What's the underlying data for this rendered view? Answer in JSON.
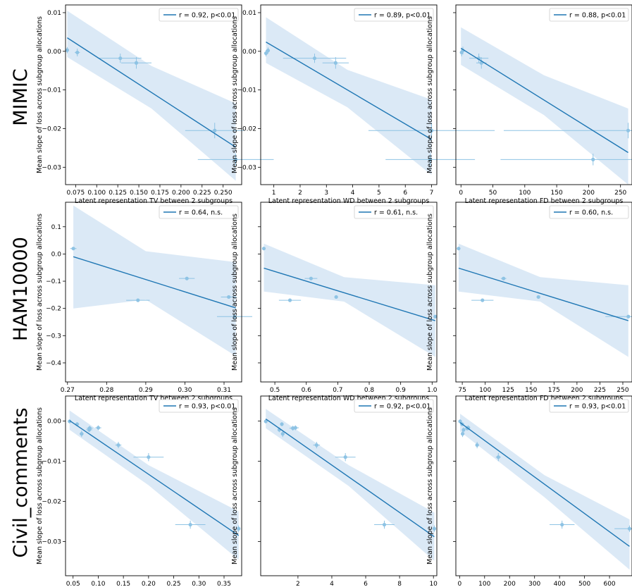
{
  "figure": {
    "row_labels": [
      "MIMIC",
      "HAM10000",
      "Civil_comments"
    ],
    "y_label": "Mean slope of loss across subgroup allocations",
    "colors": {
      "line": "#1f77b4",
      "band": "#cfe2f3",
      "points": "#8ec3e4"
    }
  },
  "chart_data": [
    {
      "id": "mimic-tv",
      "type": "scatter",
      "row": 0,
      "col": 0,
      "title": "",
      "xlabel": "Latent representation TV between 2 subgroups",
      "ylabel": "Mean slope of loss across subgroup allocations",
      "legend": "r = 0.92, p<0.01",
      "legend_loc": "top-right",
      "xlim": [
        0.063,
        0.272
      ],
      "ylim": [
        -0.0345,
        0.012
      ],
      "xticks": [
        0.075,
        0.1,
        0.125,
        0.15,
        0.175,
        0.2,
        0.225,
        0.25
      ],
      "xtick_labels": [
        "0.075",
        "0.100",
        "0.125",
        "0.150",
        "0.175",
        "0.200",
        "0.225",
        "0.250"
      ],
      "yticks": [
        0.01,
        0.0,
        -0.01,
        -0.02,
        -0.03
      ],
      "ytick_labels": [
        "0.01",
        "0.00",
        "−0.01",
        "−0.02",
        "−0.03"
      ],
      "points": [
        {
          "x": 0.065,
          "y": 0.0003,
          "xerr": 0.001,
          "yerr": 0.0008
        },
        {
          "x": 0.077,
          "y": -0.0003,
          "xerr": 0.003,
          "yerr": 0.001
        },
        {
          "x": 0.128,
          "y": -0.0018,
          "xerr": 0.025,
          "yerr": 0.0012
        },
        {
          "x": 0.147,
          "y": -0.003,
          "xerr": 0.018,
          "yerr": 0.0015
        },
        {
          "x": 0.24,
          "y": -0.0205,
          "xerr": 0.035,
          "yerr": 0.002
        },
        {
          "x": 0.265,
          "y": -0.028,
          "xerr": 0.045,
          "yerr": 0.0015
        }
      ],
      "fit": [
        [
          0.065,
          0.0035
        ],
        [
          0.265,
          -0.0248
        ]
      ],
      "band_upper": [
        [
          0.065,
          0.0105
        ],
        [
          0.165,
          -0.0038
        ],
        [
          0.265,
          -0.0135
        ]
      ],
      "band_lower": [
        [
          0.065,
          -0.0015
        ],
        [
          0.165,
          -0.0148
        ],
        [
          0.265,
          -0.0335
        ]
      ]
    },
    {
      "id": "mimic-wd",
      "type": "scatter",
      "row": 0,
      "col": 1,
      "title": "",
      "xlabel": "Latent representation WD between 2 subgroups",
      "ylabel": "Mean slope of loss across subgroup allocations",
      "legend": "r = 0.89, p<0.01",
      "legend_loc": "top-right",
      "xlim": [
        0.5,
        7.2
      ],
      "ylim": [
        -0.0345,
        0.012
      ],
      "xticks": [
        1,
        2,
        3,
        4,
        5,
        6,
        7
      ],
      "xtick_labels": [
        "1",
        "2",
        "3",
        "4",
        "5",
        "6",
        "7"
      ],
      "yticks": [
        0.01,
        0.0,
        -0.01,
        -0.02,
        -0.03
      ],
      "ytick_labels": [
        "0.01",
        "0.00",
        "−0.01",
        "−0.02",
        "−0.03"
      ],
      "points": [
        {
          "x": 0.7,
          "y": -0.0005,
          "xerr": 0.05,
          "yerr": 0.0008
        },
        {
          "x": 0.78,
          "y": 0.0002,
          "xerr": 0.05,
          "yerr": 0.0008
        },
        {
          "x": 2.55,
          "y": -0.0018,
          "xerr": 1.2,
          "yerr": 0.0012
        },
        {
          "x": 3.35,
          "y": -0.003,
          "xerr": 0.5,
          "yerr": 0.0015
        },
        {
          "x": 7.0,
          "y": -0.0205,
          "xerr": 2.4,
          "yerr": 0.002
        },
        {
          "x": 6.95,
          "y": -0.028,
          "xerr": 1.7,
          "yerr": 0.0015
        }
      ],
      "fit": [
        [
          0.7,
          0.0024
        ],
        [
          7.0,
          -0.0228
        ]
      ],
      "band_upper": [
        [
          0.7,
          0.0088
        ],
        [
          3.8,
          -0.0048
        ],
        [
          7.0,
          -0.0125
        ]
      ],
      "band_lower": [
        [
          0.7,
          -0.003
        ],
        [
          3.8,
          -0.0145
        ],
        [
          7.0,
          -0.032
        ]
      ]
    },
    {
      "id": "mimic-fd",
      "type": "scatter",
      "row": 0,
      "col": 2,
      "title": "",
      "xlabel": "Latent representation FD between 2 subgroups",
      "ylabel": "Mean slope of loss across subgroup allocations",
      "legend": "r = 0.88, p<0.01",
      "legend_loc": "top-right",
      "xlim": [
        -8,
        268
      ],
      "ylim": [
        -0.0345,
        0.012
      ],
      "xticks": [
        0,
        50,
        100,
        150,
        200,
        250
      ],
      "xtick_labels": [
        "0",
        "50",
        "100",
        "150",
        "200",
        "250"
      ],
      "yticks": [
        0.01,
        0.0,
        -0.01,
        -0.02,
        -0.03
      ],
      "ytick_labels": [
        "",
        "",
        "",
        "",
        ""
      ],
      "points": [
        {
          "x": 1,
          "y": -0.0003,
          "xerr": 2,
          "yerr": 0.001
        },
        {
          "x": 3,
          "y": 0.0002,
          "xerr": 2,
          "yerr": 0.001
        },
        {
          "x": 28,
          "y": -0.0018,
          "xerr": 15,
          "yerr": 0.0012
        },
        {
          "x": 32,
          "y": -0.003,
          "xerr": 8,
          "yerr": 0.0015
        },
        {
          "x": 262,
          "y": -0.0205,
          "xerr": 195,
          "yerr": 0.002
        },
        {
          "x": 207,
          "y": -0.028,
          "xerr": 145,
          "yerr": 0.0015
        }
      ],
      "fit": [
        [
          0,
          0.0008
        ],
        [
          262,
          -0.0262
        ]
      ],
      "band_upper": [
        [
          0,
          0.0062
        ],
        [
          130,
          -0.0062
        ],
        [
          262,
          -0.0148
        ]
      ],
      "band_lower": [
        [
          0,
          -0.0035
        ],
        [
          130,
          -0.0165
        ],
        [
          262,
          -0.0345
        ]
      ]
    },
    {
      "id": "ham-tv",
      "type": "scatter",
      "row": 1,
      "col": 0,
      "title": "",
      "xlabel": "Latent representation TV between 2 subgroups",
      "ylabel": "Mean slope of loss across subgroup allocations",
      "legend": "r = 0.64, n.s.",
      "legend_loc": "top-right",
      "xlim": [
        0.2695,
        0.3145
      ],
      "ylim": [
        -0.47,
        0.19
      ],
      "xticks": [
        0.27,
        0.28,
        0.29,
        0.3,
        0.31
      ],
      "xtick_labels": [
        "0.27",
        "0.28",
        "0.29",
        "0.30",
        "0.31"
      ],
      "yticks": [
        0.1,
        0.0,
        -0.1,
        -0.2,
        -0.3,
        -0.4
      ],
      "ytick_labels": [
        "0.1",
        "0.0",
        "−0.1",
        "−0.2",
        "−0.3",
        "−0.4"
      ],
      "points": [
        {
          "x": 0.2715,
          "y": 0.02,
          "xerr": 0.0008,
          "yerr": 0.004
        },
        {
          "x": 0.288,
          "y": -0.17,
          "xerr": 0.003,
          "yerr": 0.006
        },
        {
          "x": 0.3005,
          "y": -0.09,
          "xerr": 0.002,
          "yerr": 0.005
        },
        {
          "x": 0.3112,
          "y": -0.158,
          "xerr": 0.002,
          "yerr": 0.006
        },
        {
          "x": 0.3127,
          "y": -0.23,
          "xerr": 0.0045,
          "yerr": 0.006
        }
      ],
      "fit": [
        [
          0.2715,
          -0.01
        ],
        [
          0.313,
          -0.198
        ]
      ],
      "band_upper": [
        [
          0.2715,
          0.178
        ],
        [
          0.29,
          0.01
        ],
        [
          0.313,
          -0.03
        ]
      ],
      "band_lower": [
        [
          0.2715,
          -0.2
        ],
        [
          0.29,
          -0.168
        ],
        [
          0.313,
          -0.375
        ]
      ]
    },
    {
      "id": "ham-wd",
      "type": "scatter",
      "row": 1,
      "col": 1,
      "title": "",
      "xlabel": "Latent representation WD between 2 subgroups",
      "ylabel": "Mean slope of loss across subgroup allocations",
      "legend": "r = 0.61, n.s.",
      "legend_loc": "top-right",
      "xlim": [
        0.455,
        1.015
      ],
      "ylim": [
        -0.47,
        0.19
      ],
      "xticks": [
        0.5,
        0.6,
        0.7,
        0.8,
        0.9,
        1.0
      ],
      "xtick_labels": [
        "0.5",
        "0.6",
        "0.7",
        "0.8",
        "0.9",
        "1.0"
      ],
      "yticks": [
        0.1,
        0.0,
        -0.1,
        -0.2,
        -0.3,
        -0.4
      ],
      "ytick_labels": [
        "",
        "",
        "",
        "",
        "",
        ""
      ],
      "points": [
        {
          "x": 0.465,
          "y": 0.02,
          "xerr": 0.005,
          "yerr": 0.004
        },
        {
          "x": 0.548,
          "y": -0.17,
          "xerr": 0.035,
          "yerr": 0.006
        },
        {
          "x": 0.615,
          "y": -0.09,
          "xerr": 0.02,
          "yerr": 0.005
        },
        {
          "x": 0.695,
          "y": -0.158,
          "xerr": 0.005,
          "yerr": 0.006
        },
        {
          "x": 1.01,
          "y": -0.23,
          "xerr": 0.005,
          "yerr": 0.006
        }
      ],
      "fit": [
        [
          0.465,
          -0.052
        ],
        [
          1.01,
          -0.245
        ]
      ],
      "band_upper": [
        [
          0.465,
          0.038
        ],
        [
          0.72,
          -0.085
        ],
        [
          1.01,
          -0.115
        ]
      ],
      "band_lower": [
        [
          0.465,
          -0.138
        ],
        [
          0.72,
          -0.175
        ],
        [
          1.01,
          -0.378
        ]
      ]
    },
    {
      "id": "ham-fd",
      "type": "scatter",
      "row": 1,
      "col": 2,
      "title": "",
      "xlabel": "Latent representation FD between 2 subgroups",
      "ylabel": "Mean slope of loss across subgroup allocations",
      "legend": "r = 0.60, n.s.",
      "legend_loc": "top-right",
      "xlim": [
        68,
        260
      ],
      "ylim": [
        -0.47,
        0.19
      ],
      "xticks": [
        75,
        100,
        125,
        150,
        175,
        200,
        225,
        250
      ],
      "xtick_labels": [
        "75",
        "100",
        "125",
        "150",
        "175",
        "200",
        "225",
        "250"
      ],
      "yticks": [
        0.1,
        0.0,
        -0.1,
        -0.2,
        -0.3,
        -0.4
      ],
      "ytick_labels": [
        "",
        "",
        "",
        "",
        "",
        ""
      ],
      "points": [
        {
          "x": 71,
          "y": 0.02,
          "xerr": 2,
          "yerr": 0.004
        },
        {
          "x": 97,
          "y": -0.17,
          "xerr": 12,
          "yerr": 0.006
        },
        {
          "x": 120,
          "y": -0.09,
          "xerr": 3,
          "yerr": 0.005
        },
        {
          "x": 158,
          "y": -0.158,
          "xerr": 2,
          "yerr": 0.006
        },
        {
          "x": 256,
          "y": -0.23,
          "xerr": 25,
          "yerr": 0.006
        }
      ],
      "fit": [
        [
          71,
          -0.052
        ],
        [
          256,
          -0.245
        ]
      ],
      "band_upper": [
        [
          71,
          0.038
        ],
        [
          160,
          -0.085
        ],
        [
          256,
          -0.115
        ]
      ],
      "band_lower": [
        [
          71,
          -0.138
        ],
        [
          160,
          -0.175
        ],
        [
          256,
          -0.378
        ]
      ]
    },
    {
      "id": "civil-tv",
      "type": "scatter",
      "row": 2,
      "col": 0,
      "title": "",
      "xlabel": "Latent representation TV between 2 subgroups",
      "ylabel": "Mean slope of loss across subgroup allocations",
      "legend": "r = 0.93, p<0.01",
      "legend_loc": "top-right",
      "xlim": [
        0.035,
        0.385
      ],
      "ylim": [
        -0.0385,
        0.0062
      ],
      "xticks": [
        0.05,
        0.1,
        0.15,
        0.2,
        0.25,
        0.3,
        0.35
      ],
      "xtick_labels": [
        "0.05",
        "0.10",
        "0.15",
        "0.20",
        "0.25",
        "0.30",
        "0.35"
      ],
      "yticks": [
        0.0,
        -0.01,
        -0.02,
        -0.03
      ],
      "ytick_labels": [
        "0.00",
        "−0.01",
        "−0.02",
        "−0.03"
      ],
      "points": [
        {
          "x": 0.043,
          "y": -0.0001,
          "xerr": 0.002,
          "yerr": 0.0005
        },
        {
          "x": 0.058,
          "y": -0.0008,
          "xerr": 0.004,
          "yerr": 0.0005
        },
        {
          "x": 0.067,
          "y": -0.0032,
          "xerr": 0.004,
          "yerr": 0.0008
        },
        {
          "x": 0.082,
          "y": -0.0022,
          "xerr": 0.006,
          "yerr": 0.0006
        },
        {
          "x": 0.083,
          "y": -0.0018,
          "xerr": 0.006,
          "yerr": 0.0006
        },
        {
          "x": 0.1,
          "y": -0.0017,
          "xerr": 0.006,
          "yerr": 0.0006
        },
        {
          "x": 0.14,
          "y": -0.006,
          "xerr": 0.006,
          "yerr": 0.0008
        },
        {
          "x": 0.2,
          "y": -0.009,
          "xerr": 0.03,
          "yerr": 0.001
        },
        {
          "x": 0.283,
          "y": -0.0258,
          "xerr": 0.03,
          "yerr": 0.001
        },
        {
          "x": 0.379,
          "y": -0.0268,
          "xerr": 0.003,
          "yerr": 0.0008
        }
      ],
      "fit": [
        [
          0.043,
          0.0001
        ],
        [
          0.379,
          -0.0285
        ]
      ],
      "band_upper": [
        [
          0.043,
          0.0026
        ],
        [
          0.2,
          -0.011
        ],
        [
          0.379,
          -0.0225
        ]
      ],
      "band_lower": [
        [
          0.043,
          -0.0022
        ],
        [
          0.2,
          -0.016
        ],
        [
          0.379,
          -0.0345
        ]
      ]
    },
    {
      "id": "civil-wd",
      "type": "scatter",
      "row": 2,
      "col": 1,
      "title": "",
      "xlabel": "Latent representation WD between 2 subgroups",
      "ylabel": "Mean slope of loss across subgroup allocations",
      "legend": "r = 0.92, p<0.01",
      "legend_loc": "top-right",
      "xlim": [
        -0.2,
        10.2
      ],
      "ylim": [
        -0.0385,
        0.0062
      ],
      "xticks": [
        2,
        4,
        6,
        8,
        10
      ],
      "xtick_labels": [
        "2",
        "4",
        "6",
        "8",
        "10"
      ],
      "yticks": [
        0.0,
        -0.01,
        -0.02,
        -0.03
      ],
      "ytick_labels": [
        "",
        "",
        "",
        ""
      ],
      "points": [
        {
          "x": 0.1,
          "y": -0.0001,
          "xerr": 0.05,
          "yerr": 0.0005
        },
        {
          "x": 0.9,
          "y": -0.0022,
          "xerr": 0.1,
          "yerr": 0.0006
        },
        {
          "x": 1.05,
          "y": -0.0008,
          "xerr": 0.1,
          "yerr": 0.0005
        },
        {
          "x": 1.1,
          "y": -0.0032,
          "xerr": 0.1,
          "yerr": 0.0008
        },
        {
          "x": 1.7,
          "y": -0.0018,
          "xerr": 0.2,
          "yerr": 0.0006
        },
        {
          "x": 1.85,
          "y": -0.0017,
          "xerr": 0.2,
          "yerr": 0.0006
        },
        {
          "x": 3.1,
          "y": -0.006,
          "xerr": 0.2,
          "yerr": 0.0008
        },
        {
          "x": 4.8,
          "y": -0.009,
          "xerr": 0.6,
          "yerr": 0.001
        },
        {
          "x": 7.1,
          "y": -0.0258,
          "xerr": 0.6,
          "yerr": 0.001
        },
        {
          "x": 10.05,
          "y": -0.0268,
          "xerr": 0.1,
          "yerr": 0.0008
        }
      ],
      "fit": [
        [
          0.1,
          0.0005
        ],
        [
          10.05,
          -0.0288
        ]
      ],
      "band_upper": [
        [
          0.1,
          0.003
        ],
        [
          5.0,
          -0.011
        ],
        [
          10.05,
          -0.0228
        ]
      ],
      "band_lower": [
        [
          0.1,
          -0.0018
        ],
        [
          5.0,
          -0.0162
        ],
        [
          10.05,
          -0.0348
        ]
      ]
    },
    {
      "id": "civil-fd",
      "type": "scatter",
      "row": 2,
      "col": 2,
      "title": "",
      "xlabel": "Latent representation FD between 2 subgroups",
      "ylabel": "Mean slope of loss across subgroup allocations",
      "legend": "r = 0.93, p<0.01",
      "legend_loc": "top-right",
      "xlim": [
        -15,
        690
      ],
      "ylim": [
        -0.0385,
        0.0062
      ],
      "xticks": [
        0,
        100,
        200,
        300,
        400,
        500,
        600
      ],
      "xtick_labels": [
        "0",
        "100",
        "200",
        "300",
        "400",
        "500",
        "600"
      ],
      "yticks": [
        0.0,
        -0.01,
        -0.02,
        -0.03
      ],
      "ytick_labels": [
        "",
        "",
        "",
        ""
      ],
      "points": [
        {
          "x": 2,
          "y": -0.0001,
          "xerr": 2,
          "yerr": 0.0005
        },
        {
          "x": 10,
          "y": -0.0008,
          "xerr": 3,
          "yerr": 0.0005
        },
        {
          "x": 12,
          "y": -0.0032,
          "xerr": 3,
          "yerr": 0.0008
        },
        {
          "x": 16,
          "y": -0.0022,
          "xerr": 3,
          "yerr": 0.0006
        },
        {
          "x": 30,
          "y": -0.0018,
          "xerr": 4,
          "yerr": 0.0006
        },
        {
          "x": 35,
          "y": -0.0017,
          "xerr": 4,
          "yerr": 0.0006
        },
        {
          "x": 70,
          "y": -0.006,
          "xerr": 5,
          "yerr": 0.0008
        },
        {
          "x": 155,
          "y": -0.009,
          "xerr": 10,
          "yerr": 0.001
        },
        {
          "x": 410,
          "y": -0.0258,
          "xerr": 50,
          "yerr": 0.001
        },
        {
          "x": 680,
          "y": -0.0268,
          "xerr": 60,
          "yerr": 0.0008
        }
      ],
      "fit": [
        [
          2,
          -0.0004
        ],
        [
          680,
          -0.0312
        ]
      ],
      "band_upper": [
        [
          2,
          0.0018
        ],
        [
          340,
          -0.0135
        ],
        [
          680,
          -0.0245
        ]
      ],
      "band_lower": [
        [
          2,
          -0.0026
        ],
        [
          340,
          -0.019
        ],
        [
          680,
          -0.037
        ]
      ]
    }
  ]
}
